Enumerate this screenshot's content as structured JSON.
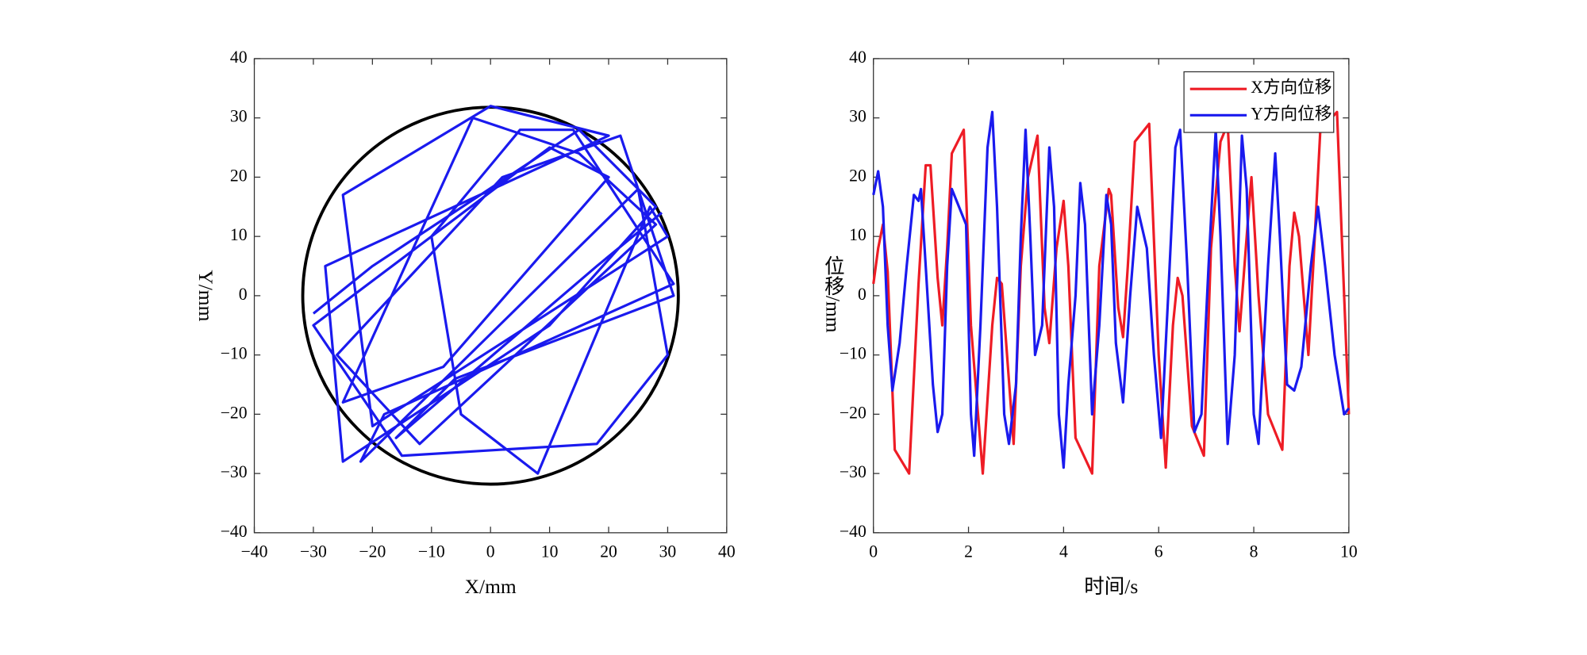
{
  "chart_data": [
    {
      "type": "trajectory",
      "xlabel": "X/mm",
      "ylabel": "Y/mm",
      "xlim": [
        -40,
        40
      ],
      "ylim": [
        -40,
        40
      ],
      "xticks": [
        {
          "value": -40,
          "label": "−40"
        },
        {
          "value": -30,
          "label": "−30"
        },
        {
          "value": -20,
          "label": "−20"
        },
        {
          "value": -10,
          "label": "−10"
        },
        0,
        10,
        20,
        30,
        40
      ],
      "yticks": [
        {
          "value": -40,
          "label": "−40"
        },
        {
          "value": -30,
          "label": "−30"
        },
        {
          "value": -20,
          "label": "−20"
        },
        {
          "value": -10,
          "label": "−10"
        },
        0,
        10,
        20,
        30,
        40
      ],
      "circle": {
        "radius": 31.8,
        "color": "#000000"
      },
      "series": [
        {
          "color": "#1a1aee",
          "x": [
            -30,
            -20,
            15,
            28,
            10,
            -25,
            -28,
            20,
            0,
            -25,
            -20,
            30,
            27,
            8,
            -5,
            -10,
            5,
            14,
            31,
            -18,
            -22,
            25,
            30,
            18,
            -15,
            -30,
            10,
            20,
            -8,
            -25,
            -3,
            15,
            28,
            -12,
            -26,
            2,
            22,
            31,
            -6,
            -16,
            18,
            29
          ],
          "values": [
            -3,
            5,
            28,
            15,
            -5,
            -28,
            5,
            27,
            32,
            17,
            -22,
            10,
            15,
            -30,
            -20,
            10,
            28,
            28,
            2,
            -20,
            -28,
            18,
            -10,
            -25,
            -27,
            -5,
            25,
            20,
            -12,
            -18,
            30,
            24,
            12,
            -25,
            -10,
            20,
            27,
            0,
            -14,
            -24,
            5,
            14
          ]
        }
      ]
    },
    {
      "type": "line",
      "xlabel": "时间/s",
      "ylabel": "位移/mm",
      "xlim": [
        0,
        10
      ],
      "ylim": [
        -40,
        40
      ],
      "xticks": [
        0,
        2,
        4,
        6,
        8,
        10
      ],
      "yticks": [
        {
          "value": -40,
          "label": "−40"
        },
        {
          "value": -30,
          "label": "−30"
        },
        {
          "value": -20,
          "label": "−20"
        },
        {
          "value": -10,
          "label": "−10"
        },
        0,
        10,
        20,
        30,
        40
      ],
      "legend": "upper right",
      "series": [
        {
          "name": "X方向位移",
          "color": "#ee1c25",
          "x": [
            0,
            0.1,
            0.2,
            0.3,
            0.45,
            0.75,
            0.95,
            1.1,
            1.2,
            1.35,
            1.45,
            1.55,
            1.65,
            1.9,
            2.05,
            2.3,
            2.5,
            2.6,
            2.7,
            2.95,
            3.1,
            3.25,
            3.45,
            3.6,
            3.7,
            3.85,
            4.0,
            4.1,
            4.25,
            4.6,
            4.75,
            4.95,
            5.0,
            5.15,
            5.25,
            5.35,
            5.5,
            5.8,
            6.0,
            6.15,
            6.3,
            6.4,
            6.5,
            6.7,
            6.95,
            7.1,
            7.3,
            7.45,
            7.6,
            7.7,
            7.85,
            7.95,
            8.1,
            8.3,
            8.6,
            8.75,
            8.85,
            8.95,
            9.1,
            9.15,
            9.25,
            9.4,
            9.75,
            9.85,
            10
          ],
          "values": [
            2,
            8,
            12,
            4,
            -26,
            -30,
            2,
            22,
            22,
            3,
            -5,
            8,
            24,
            28,
            -5,
            -30,
            -5,
            3,
            2,
            -25,
            5,
            20,
            27,
            -2,
            -8,
            8,
            16,
            5,
            -24,
            -30,
            5,
            18,
            17,
            -2,
            -7,
            5,
            26,
            29,
            -10,
            -29,
            -5,
            3,
            0,
            -22,
            -27,
            8,
            26,
            29,
            5,
            -6,
            10,
            20,
            0,
            -20,
            -26,
            5,
            14,
            10,
            -5,
            -10,
            5,
            28,
            31,
            10,
            -20
          ]
        },
        {
          "name": "Y方向位移",
          "color": "#1a1aee",
          "x": [
            0,
            0.1,
            0.2,
            0.3,
            0.4,
            0.55,
            0.7,
            0.85,
            0.95,
            1.0,
            1.1,
            1.25,
            1.35,
            1.45,
            1.55,
            1.65,
            1.8,
            1.95,
            2.05,
            2.12,
            2.25,
            2.4,
            2.5,
            2.6,
            2.75,
            2.85,
            3.0,
            3.1,
            3.2,
            3.3,
            3.4,
            3.55,
            3.7,
            3.8,
            3.9,
            4.0,
            4.1,
            4.25,
            4.35,
            4.45,
            4.6,
            4.75,
            4.9,
            5.0,
            5.1,
            5.25,
            5.4,
            5.55,
            5.75,
            5.9,
            6.05,
            6.2,
            6.35,
            6.45,
            6.6,
            6.75,
            6.9,
            7.05,
            7.2,
            7.3,
            7.45,
            7.6,
            7.75,
            7.85,
            8.0,
            8.1,
            8.3,
            8.45,
            8.55,
            8.7,
            8.85,
            9.0,
            9.2,
            9.35,
            9.5,
            9.7,
            9.9,
            10
          ],
          "values": [
            17,
            21,
            15,
            -5,
            -16,
            -8,
            5,
            17,
            16,
            18,
            5,
            -15,
            -23,
            -20,
            5,
            18,
            15,
            12,
            -20,
            -27,
            -5,
            25,
            31,
            15,
            -20,
            -25,
            -15,
            10,
            28,
            10,
            -10,
            -5,
            25,
            15,
            -20,
            -29,
            -15,
            0,
            19,
            12,
            -20,
            -5,
            17,
            12,
            -8,
            -18,
            0,
            15,
            8,
            -10,
            -24,
            0,
            25,
            28,
            5,
            -23,
            -20,
            5,
            28,
            10,
            -25,
            -10,
            27,
            18,
            -20,
            -25,
            5,
            24,
            10,
            -15,
            -16,
            -12,
            5,
            15,
            5,
            -10,
            -20,
            -19
          ]
        }
      ]
    }
  ]
}
